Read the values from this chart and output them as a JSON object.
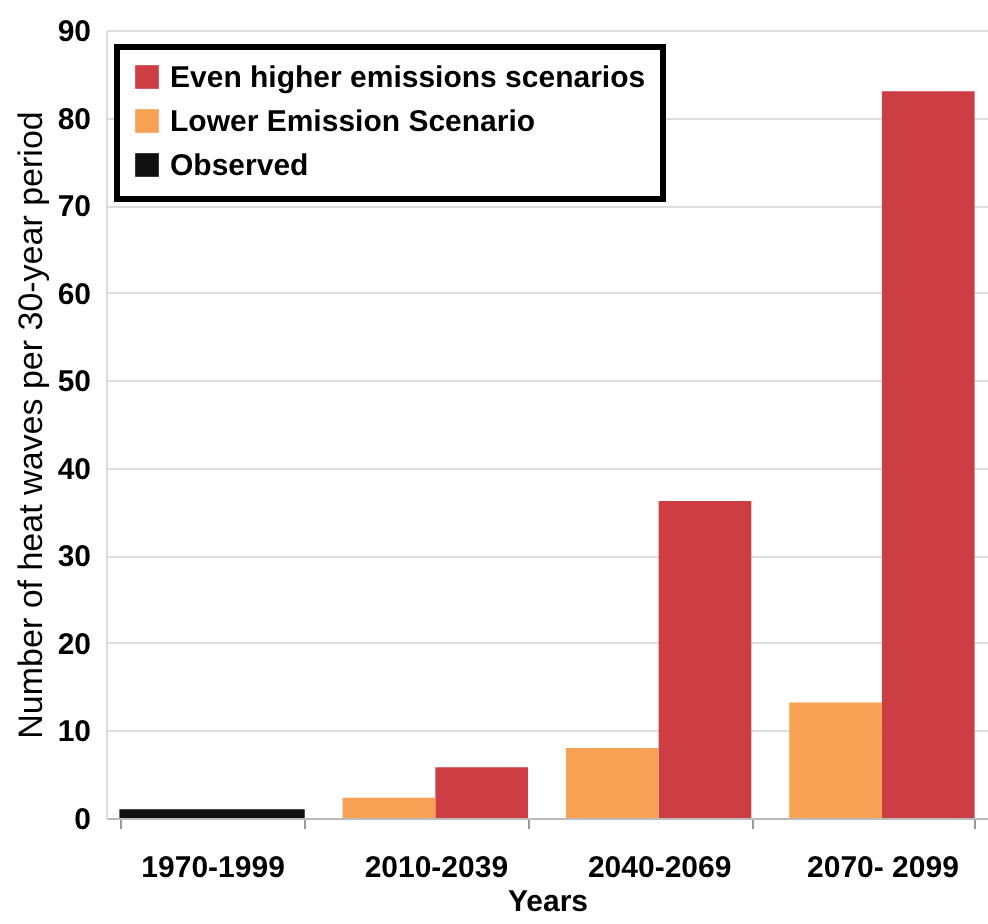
{
  "chart_data": {
    "type": "bar",
    "xlabel": "Years",
    "ylabel": "Number of heat waves per 30-year period",
    "categories": [
      "1970-1999",
      "2010-2039",
      "2040-2069",
      "2070- 2099"
    ],
    "series": [
      {
        "name": "Even higher emissions scenarios",
        "color": "#cc3d44",
        "values": [
          null,
          5.8,
          36.2,
          83
        ]
      },
      {
        "name": "Lower Emission Scenario",
        "color": "#f7a154",
        "values": [
          null,
          2.3,
          8,
          13.2
        ]
      },
      {
        "name": "Observed",
        "color": "#111111",
        "values": [
          1,
          null,
          null,
          null
        ]
      }
    ],
    "ylim": [
      0,
      90
    ],
    "yticks": [
      0,
      10,
      20,
      30,
      40,
      50,
      60,
      70,
      80,
      90
    ],
    "grid": "y",
    "legend": "top left"
  }
}
